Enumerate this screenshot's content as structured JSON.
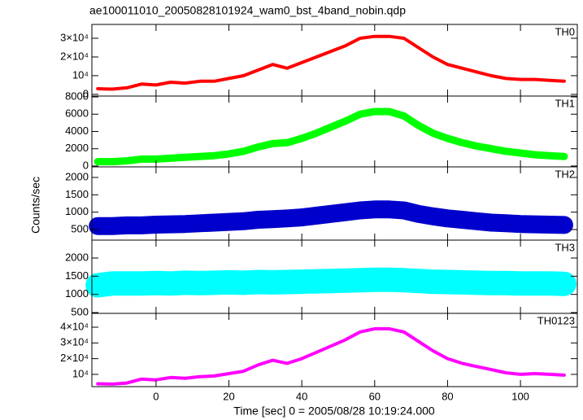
{
  "chart_data": [
    {
      "type": "line",
      "title": "ae100011010_20050828101924_wam0_bst_4band_nobin.qdp",
      "x": [
        -16,
        -12,
        -8,
        -4,
        0,
        4,
        8,
        12,
        16,
        20,
        24,
        28,
        32,
        36,
        40,
        44,
        48,
        52,
        56,
        60,
        64,
        68,
        72,
        76,
        80,
        84,
        88,
        92,
        96,
        100,
        104,
        108,
        112
      ],
      "series": [
        {
          "name": "TH0",
          "color": "#ff0000",
          "values": [
            3000,
            2800,
            3500,
            5500,
            5000,
            6500,
            6000,
            7000,
            7000,
            8500,
            10000,
            13000,
            16000,
            14000,
            17000,
            20000,
            23000,
            26000,
            30000,
            31000,
            31000,
            30000,
            25000,
            20000,
            16000,
            14000,
            12000,
            10000,
            8500,
            8000,
            8000,
            7500,
            7000
          ]
        }
      ],
      "xlim": [
        -17.6,
        115.6
      ],
      "ylim": [
        -900,
        37400
      ],
      "yticks": [
        0,
        {
          "value": 10000,
          "label": "10⁴"
        },
        {
          "value": 20000,
          "label": "2×10⁴"
        },
        {
          "value": 30000,
          "label": "3×10⁴"
        }
      ]
    },
    {
      "type": "line",
      "x": [
        -16,
        -12,
        -8,
        -4,
        0,
        4,
        8,
        12,
        16,
        20,
        24,
        28,
        32,
        36,
        40,
        44,
        48,
        52,
        56,
        60,
        64,
        68,
        72,
        76,
        80,
        84,
        88,
        92,
        96,
        100,
        104,
        108,
        112
      ],
      "series": [
        {
          "name": "TH1",
          "color": "#00ff00",
          "values": [
            500,
            500,
            600,
            800,
            800,
            900,
            1000,
            1100,
            1200,
            1400,
            1700,
            2200,
            2600,
            2700,
            3200,
            3800,
            4500,
            5200,
            6000,
            6300,
            6300,
            5800,
            4700,
            3800,
            3200,
            2700,
            2300,
            2000,
            1700,
            1500,
            1300,
            1200,
            1100
          ]
        }
      ],
      "xlim": [
        -17.6,
        115.6
      ],
      "ylim": [
        -100,
        8100
      ],
      "yticks": [
        0,
        2000,
        4000,
        6000,
        8000
      ]
    },
    {
      "type": "line",
      "ylabel": "Counts/sec",
      "x": [
        -16,
        -12,
        -8,
        -4,
        0,
        4,
        8,
        12,
        16,
        20,
        24,
        28,
        32,
        36,
        40,
        44,
        48,
        52,
        56,
        60,
        64,
        68,
        72,
        76,
        80,
        84,
        88,
        92,
        96,
        100,
        104,
        108,
        112
      ],
      "series": [
        {
          "name": "TH2",
          "color": "#0000cc",
          "values": [
            600,
            600,
            620,
            620,
            640,
            650,
            660,
            680,
            700,
            720,
            740,
            780,
            800,
            820,
            850,
            900,
            950,
            1000,
            1050,
            1080,
            1080,
            1050,
            950,
            880,
            820,
            780,
            740,
            700,
            680,
            660,
            650,
            640,
            630
          ]
        }
      ],
      "xlim": [
        -17.6,
        115.6
      ],
      "ylim": [
        195,
        2305
      ],
      "yticks": [
        500,
        1000,
        1500,
        2000
      ]
    },
    {
      "type": "line",
      "x": [
        -16,
        -12,
        -8,
        -4,
        0,
        4,
        8,
        12,
        16,
        20,
        24,
        28,
        32,
        36,
        40,
        44,
        48,
        52,
        56,
        60,
        64,
        68,
        72,
        76,
        80,
        84,
        88,
        92,
        96,
        100,
        104,
        108,
        112
      ],
      "series": [
        {
          "name": "TH3",
          "color": "#00ffff",
          "values": [
            1250,
            1300,
            1300,
            1300,
            1310,
            1300,
            1320,
            1310,
            1320,
            1330,
            1320,
            1340,
            1330,
            1340,
            1350,
            1360,
            1370,
            1380,
            1390,
            1400,
            1400,
            1390,
            1370,
            1350,
            1340,
            1330,
            1320,
            1310,
            1310,
            1300,
            1300,
            1300,
            1290
          ]
        }
      ],
      "xlim": [
        -17.6,
        115.6
      ],
      "ylim": [
        478,
        2493
      ],
      "yticks": [
        500,
        1000,
        1500,
        2000
      ]
    },
    {
      "type": "line",
      "xlabel": "Time [sec] 0 = 2005/08/28 10:19:24.000",
      "x": [
        -16,
        -12,
        -8,
        -4,
        0,
        4,
        8,
        12,
        16,
        20,
        24,
        28,
        32,
        36,
        40,
        44,
        48,
        52,
        56,
        60,
        64,
        68,
        72,
        76,
        80,
        84,
        88,
        92,
        96,
        100,
        104,
        108,
        112
      ],
      "series": [
        {
          "name": "TH0123",
          "color": "#ff00ff",
          "values": [
            4000,
            3800,
            4500,
            7000,
            6500,
            8000,
            7500,
            8500,
            9000,
            10500,
            12000,
            16000,
            19000,
            17000,
            20000,
            24000,
            28000,
            32000,
            37000,
            39000,
            39000,
            37000,
            31000,
            25000,
            20000,
            17000,
            15000,
            13000,
            11000,
            10000,
            10500,
            10000,
            9500
          ]
        }
      ],
      "xlim": [
        -17.6,
        115.6
      ],
      "ylim": [
        2200,
        48800
      ],
      "xticks": [
        0,
        20,
        40,
        60,
        80,
        100
      ],
      "yticks": [
        {
          "value": 10000,
          "label": "10⁴"
        },
        {
          "value": 20000,
          "label": "2×10⁴"
        },
        {
          "value": 30000,
          "label": "3×10⁴"
        },
        {
          "value": 40000,
          "label": "4×10⁴"
        }
      ]
    }
  ]
}
